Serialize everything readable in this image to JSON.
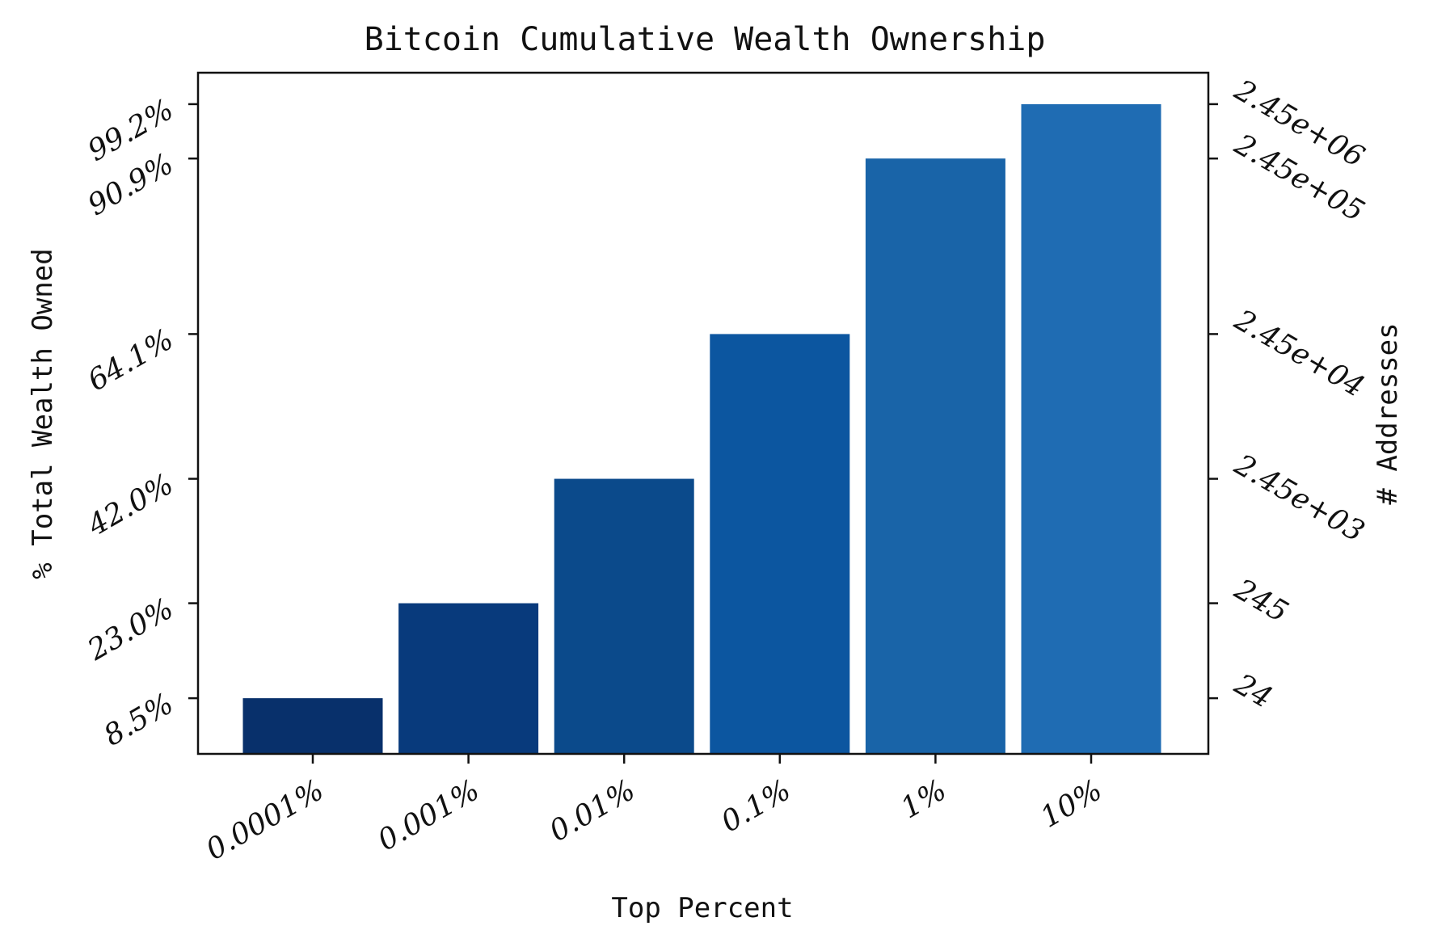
{
  "chart_data": {
    "type": "bar",
    "title": "Bitcoin Cumulative Wealth Ownership",
    "xlabel": "Top Percent",
    "ylabel": "% Total Wealth Owned",
    "ylabel_right": "# Addresses",
    "categories": [
      "0.0001%",
      "0.001%",
      "0.01%",
      "0.1%",
      "1%",
      "10%"
    ],
    "values": [
      8.5,
      23.0,
      42.0,
      64.1,
      90.9,
      99.2
    ],
    "value_labels": [
      "8.5%",
      "23.0%",
      "42.0%",
      "64.1%",
      "90.9%",
      "99.2%"
    ],
    "right_tick_labels": [
      "24",
      "245",
      "2.45e+03",
      "2.45e+04",
      "2.45e+05",
      "2.45e+06"
    ],
    "ylim": [
      0,
      104
    ],
    "bar_colors": [
      "#08306b",
      "#083a7c",
      "#0b4a8b",
      "#0c56a0",
      "#1964a8",
      "#1f6cb3"
    ],
    "grid": false,
    "legend": "none"
  }
}
